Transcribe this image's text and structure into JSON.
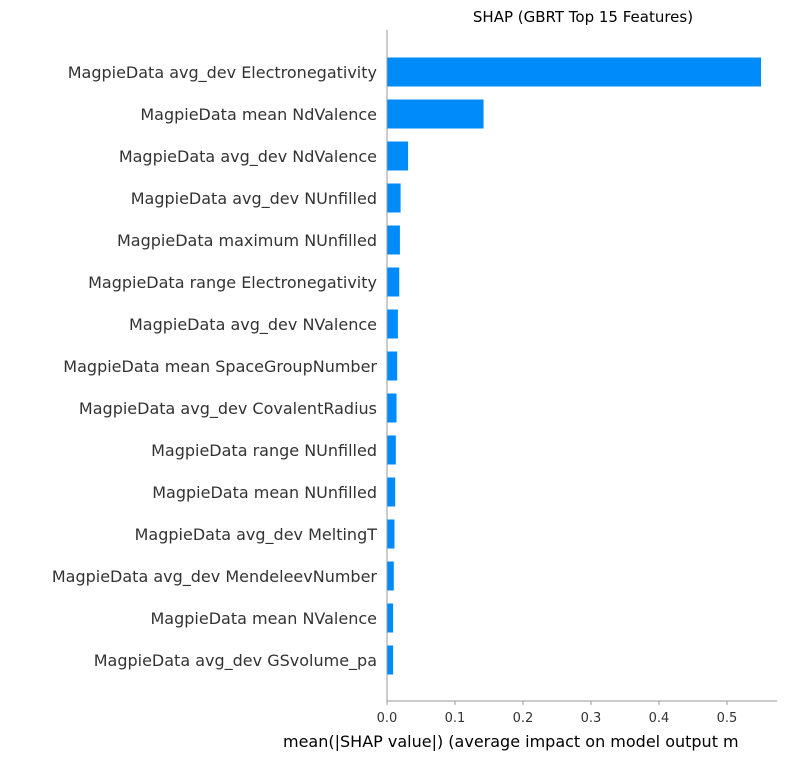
{
  "chart_data": {
    "type": "bar",
    "orientation": "horizontal",
    "title": "SHAP  (GBRT Top 15 Features)",
    "xlabel": "mean(|SHAP value|) (average impact on model output m",
    "ylabel": "",
    "xlim": [
      0,
      0.56
    ],
    "xticks": [
      "0.0",
      "0.1",
      "0.2",
      "0.3",
      "0.4",
      "0.5"
    ],
    "bar_color": "#008bfb",
    "categories": [
      "MagpieData avg_dev Electronegativity",
      "MagpieData mean NdValence",
      "MagpieData avg_dev NdValence",
      "MagpieData avg_dev NUnfilled",
      "MagpieData maximum NUnfilled",
      "MagpieData range Electronegativity",
      "MagpieData avg_dev NValence",
      "MagpieData mean SpaceGroupNumber",
      "MagpieData avg_dev CovalentRadius",
      "MagpieData range NUnfilled",
      "MagpieData mean NUnfilled",
      "MagpieData avg_dev MeltingT",
      "MagpieData avg_dev MendeleevNumber",
      "MagpieData mean NValence",
      "MagpieData avg_dev GSvolume_pa"
    ],
    "values": [
      0.55,
      0.142,
      0.031,
      0.02,
      0.019,
      0.018,
      0.016,
      0.015,
      0.014,
      0.013,
      0.012,
      0.011,
      0.01,
      0.009,
      0.009
    ],
    "grid": false,
    "legend": "none"
  }
}
